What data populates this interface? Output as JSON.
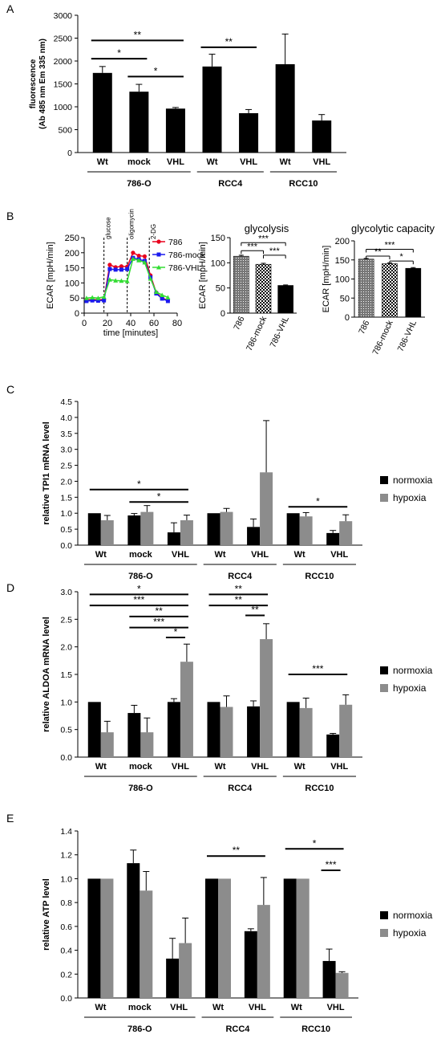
{
  "chart_data": [
    {
      "panel": "A",
      "type": "bar",
      "ylabel_lines": [
        "fluorescence",
        "(Ab 485 nm Em 335 nm)"
      ],
      "ylim": [
        0,
        3000
      ],
      "yticks": [
        0,
        500,
        1000,
        1500,
        2000,
        2500,
        3000
      ],
      "series": [
        {
          "name": "",
          "color": "#000000"
        }
      ],
      "groups": [
        {
          "label": "786-O",
          "bars": [
            {
              "tick": "Wt",
              "values": [
                1740
              ],
              "err": [
                140
              ]
            },
            {
              "tick": "mock",
              "values": [
                1330
              ],
              "err": [
                160
              ]
            },
            {
              "tick": "VHL",
              "values": [
                960
              ],
              "err": [
                25
              ]
            }
          ]
        },
        {
          "label": "RCC4",
          "bars": [
            {
              "tick": "Wt",
              "values": [
                1880
              ],
              "err": [
                270
              ]
            },
            {
              "tick": "VHL",
              "values": [
                860
              ],
              "err": [
                80
              ]
            }
          ]
        },
        {
          "label": "RCC10",
          "bars": [
            {
              "tick": "Wt",
              "values": [
                1930
              ],
              "err": [
                660
              ]
            },
            {
              "tick": "VHL",
              "values": [
                700
              ],
              "err": [
                130
              ]
            }
          ]
        }
      ],
      "annotations": [
        {
          "from": [
            0,
            0
          ],
          "to": [
            0,
            2
          ],
          "y": 2450,
          "text": "**"
        },
        {
          "from": [
            0,
            0
          ],
          "to": [
            0,
            1
          ],
          "y": 2050,
          "text": "*"
        },
        {
          "from": [
            0,
            1
          ],
          "to": [
            0,
            2
          ],
          "y": 1660,
          "text": "*"
        },
        {
          "from": [
            1,
            0
          ],
          "to": [
            1,
            1
          ],
          "y": 2300,
          "text": "**"
        }
      ]
    },
    {
      "panel": "B",
      "type": "line",
      "ylabel": "ECAR [mpH/min]",
      "xlabel": "time [minutes]",
      "xlim": [
        0,
        80
      ],
      "ylim": [
        0,
        250
      ],
      "xticks": [
        0,
        20,
        40,
        60,
        80
      ],
      "yticks": [
        0,
        50,
        100,
        150,
        200,
        250
      ],
      "events": [
        {
          "x": 17,
          "label": "glucose"
        },
        {
          "x": 37,
          "label": "oligomycin"
        },
        {
          "x": 56,
          "label": "2-DG"
        }
      ],
      "x": [
        2,
        7,
        12,
        17,
        22,
        27,
        32,
        37,
        42,
        47,
        52,
        57,
        62,
        67,
        72
      ],
      "series": [
        {
          "name": "786",
          "color": "#e8001c",
          "marker": "circle",
          "values": [
            45,
            45,
            45,
            45,
            160,
            152,
            155,
            154,
            200,
            190,
            188,
            125,
            68,
            50,
            43
          ]
        },
        {
          "name": "786-mock",
          "color": "#1a1aee",
          "marker": "square",
          "values": [
            40,
            42,
            41,
            42,
            146,
            144,
            144,
            146,
            183,
            178,
            173,
            118,
            65,
            48,
            40
          ]
        },
        {
          "name": "786-VHL",
          "color": "#33dd33",
          "marker": "triangle",
          "values": [
            50,
            52,
            50,
            54,
            111,
            108,
            107,
            106,
            180,
            175,
            168,
            114,
            70,
            60,
            52
          ]
        }
      ]
    },
    {
      "panel": "B",
      "type": "bar",
      "title": "glycolysis",
      "ylabel": "ECAR [mpH/min]",
      "ylim": [
        0,
        150
      ],
      "yticks": [
        0,
        50,
        100,
        150
      ],
      "categories": [
        "786",
        "786-mock",
        "786-VHL"
      ],
      "values": [
        113,
        97,
        55
      ],
      "err": [
        2,
        2,
        1
      ],
      "annotations": [
        {
          "from": 0,
          "to": 1,
          "y": 124,
          "text": "***"
        },
        {
          "from": 0,
          "to": 2,
          "y": 140,
          "text": "***"
        },
        {
          "from": 1,
          "to": 2,
          "y": 115,
          "text": "***"
        }
      ]
    },
    {
      "panel": "B",
      "type": "bar",
      "title": "glycolytic capacity",
      "ylabel": "ECAR [mpH/min]",
      "ylim": [
        0,
        200
      ],
      "yticks": [
        0,
        50,
        100,
        150,
        200
      ],
      "categories": [
        "786",
        "786-mock",
        "786-VHL"
      ],
      "values": [
        152,
        140,
        128
      ],
      "err": [
        2,
        2,
        2
      ],
      "annotations": [
        {
          "from": 0,
          "to": 1,
          "y": 160,
          "text": "**"
        },
        {
          "from": 0,
          "to": 2,
          "y": 178,
          "text": "***"
        },
        {
          "from": 1,
          "to": 2,
          "y": 147,
          "text": "*"
        }
      ]
    },
    {
      "panel": "C",
      "type": "bar",
      "ylabel": "relative TPI1 mRNA level",
      "ylim": [
        0,
        4.5
      ],
      "yticks": [
        0,
        0.5,
        1.0,
        1.5,
        2.0,
        2.5,
        3.0,
        3.5,
        4.0,
        4.5
      ],
      "decimals": 1,
      "series": [
        {
          "name": "normoxia",
          "color": "#000000"
        },
        {
          "name": "hypoxia",
          "color": "#8c8c8c"
        }
      ],
      "groups": [
        {
          "label": "786-O",
          "bars": [
            {
              "tick": "Wt",
              "values": [
                1.0,
                0.78
              ],
              "err": [
                0,
                0.15
              ]
            },
            {
              "tick": "mock",
              "values": [
                0.93,
                1.04
              ],
              "err": [
                0.06,
                0.2
              ]
            },
            {
              "tick": "VHL",
              "values": [
                0.4,
                0.78
              ],
              "err": [
                0.3,
                0.16
              ]
            }
          ]
        },
        {
          "label": "RCC4",
          "bars": [
            {
              "tick": "Wt",
              "values": [
                1.0,
                1.04
              ],
              "err": [
                0,
                0.11
              ]
            },
            {
              "tick": "VHL",
              "values": [
                0.57,
                2.28
              ],
              "err": [
                0.25,
                1.62
              ]
            }
          ]
        },
        {
          "label": "RCC10",
          "bars": [
            {
              "tick": "Wt",
              "values": [
                1.0,
                0.9
              ],
              "err": [
                0,
                0.12
              ]
            },
            {
              "tick": "VHL",
              "values": [
                0.38,
                0.75
              ],
              "err": [
                0.08,
                0.2
              ]
            }
          ]
        }
      ],
      "annotations": [
        {
          "from": [
            0,
            0
          ],
          "to": [
            0,
            2
          ],
          "y": 1.74,
          "text": "*"
        },
        {
          "from": [
            0,
            1
          ],
          "to": [
            0,
            2
          ],
          "y": 1.35,
          "text": "*"
        },
        {
          "from": [
            2,
            0
          ],
          "to": [
            2,
            1
          ],
          "y": 1.2,
          "text": "*"
        }
      ]
    },
    {
      "panel": "D",
      "type": "bar",
      "ylabel": "relative ALDOA mRNA level",
      "ylim": [
        0,
        3.0
      ],
      "yticks": [
        0,
        0.5,
        1.0,
        1.5,
        2.0,
        2.5,
        3.0
      ],
      "decimals": 1,
      "series": [
        {
          "name": "normoxia",
          "color": "#000000"
        },
        {
          "name": "hypoxia",
          "color": "#8c8c8c"
        }
      ],
      "groups": [
        {
          "label": "786-O",
          "bars": [
            {
              "tick": "Wt",
              "values": [
                1.0,
                0.45
              ],
              "err": [
                0,
                0.2
              ]
            },
            {
              "tick": "mock",
              "values": [
                0.8,
                0.45
              ],
              "err": [
                0.14,
                0.26
              ]
            },
            {
              "tick": "VHL",
              "values": [
                1.0,
                1.73
              ],
              "err": [
                0.06,
                0.32
              ]
            }
          ]
        },
        {
          "label": "RCC4",
          "bars": [
            {
              "tick": "Wt",
              "values": [
                1.0,
                0.91
              ],
              "err": [
                0,
                0.2
              ]
            },
            {
              "tick": "VHL",
              "values": [
                0.92,
                2.14
              ],
              "err": [
                0.1,
                0.28
              ]
            }
          ]
        },
        {
          "label": "RCC10",
          "bars": [
            {
              "tick": "Wt",
              "values": [
                1.0,
                0.89
              ],
              "err": [
                0,
                0.18
              ]
            },
            {
              "tick": "VHL",
              "values": [
                0.41,
                0.95
              ],
              "err": [
                0.02,
                0.18
              ]
            }
          ]
        }
      ],
      "annotations": [
        {
          "from": [
            0,
            0
          ],
          "to": [
            0,
            2
          ],
          "y": 2.95,
          "text": "*"
        },
        {
          "from": [
            0,
            0
          ],
          "to": [
            0,
            2
          ],
          "y": 2.75,
          "text": "***"
        },
        {
          "from": [
            0,
            1
          ],
          "to": [
            0,
            2
          ],
          "y": 2.55,
          "text": "**"
        },
        {
          "from": [
            0,
            1
          ],
          "to": [
            0,
            2
          ],
          "y": 2.35,
          "text": "***"
        },
        {
          "from": [
            0,
            2
          ],
          "to": [
            0,
            2
          ],
          "y": 2.17,
          "text": "*"
        },
        {
          "from": [
            1,
            0
          ],
          "to": [
            1,
            1
          ],
          "y": 2.95,
          "text": "**"
        },
        {
          "from": [
            1,
            0
          ],
          "to": [
            1,
            1
          ],
          "y": 2.75,
          "text": "**"
        },
        {
          "from": [
            1,
            1
          ],
          "to": [
            1,
            1
          ],
          "y": 2.57,
          "text": "**"
        },
        {
          "from": [
            2,
            0
          ],
          "to": [
            2,
            1
          ],
          "y": 1.5,
          "text": "***"
        }
      ]
    },
    {
      "panel": "E",
      "type": "bar",
      "ylabel": "relative ATP level",
      "ylim": [
        0,
        1.4
      ],
      "yticks": [
        0,
        0.2,
        0.4,
        0.6,
        0.8,
        1.0,
        1.2,
        1.4
      ],
      "decimals": 1,
      "series": [
        {
          "name": "normoxia",
          "color": "#000000"
        },
        {
          "name": "hypoxia",
          "color": "#8c8c8c"
        }
      ],
      "groups": [
        {
          "label": "786-O",
          "bars": [
            {
              "tick": "Wt",
              "values": [
                1.0,
                1.0
              ],
              "err": [
                0,
                0
              ]
            },
            {
              "tick": "mock",
              "values": [
                1.13,
                0.9
              ],
              "err": [
                0.11,
                0.16
              ]
            },
            {
              "tick": "VHL",
              "values": [
                0.33,
                0.46
              ],
              "err": [
                0.17,
                0.21
              ]
            }
          ]
        },
        {
          "label": "RCC4",
          "bars": [
            {
              "tick": "Wt",
              "values": [
                1.0,
                1.0
              ],
              "err": [
                0,
                0
              ]
            },
            {
              "tick": "VHL",
              "values": [
                0.56,
                0.78
              ],
              "err": [
                0.02,
                0.23
              ]
            }
          ]
        },
        {
          "label": "RCC10",
          "bars": [
            {
              "tick": "Wt",
              "values": [
                1.0,
                1.0
              ],
              "err": [
                0,
                0
              ]
            },
            {
              "tick": "VHL",
              "values": [
                0.31,
                0.21
              ],
              "err": [
                0.1,
                0.01
              ]
            }
          ]
        }
      ],
      "annotations": [
        {
          "from": [
            1,
            0
          ],
          "to": [
            1,
            1
          ],
          "y": 1.19,
          "text": "**"
        },
        {
          "from": [
            2,
            0
          ],
          "to": [
            2,
            1
          ],
          "y": 1.25,
          "text": "*"
        },
        {
          "from": [
            2,
            1
          ],
          "to": [
            2,
            1
          ],
          "y": 1.07,
          "text": "***"
        }
      ]
    }
  ]
}
